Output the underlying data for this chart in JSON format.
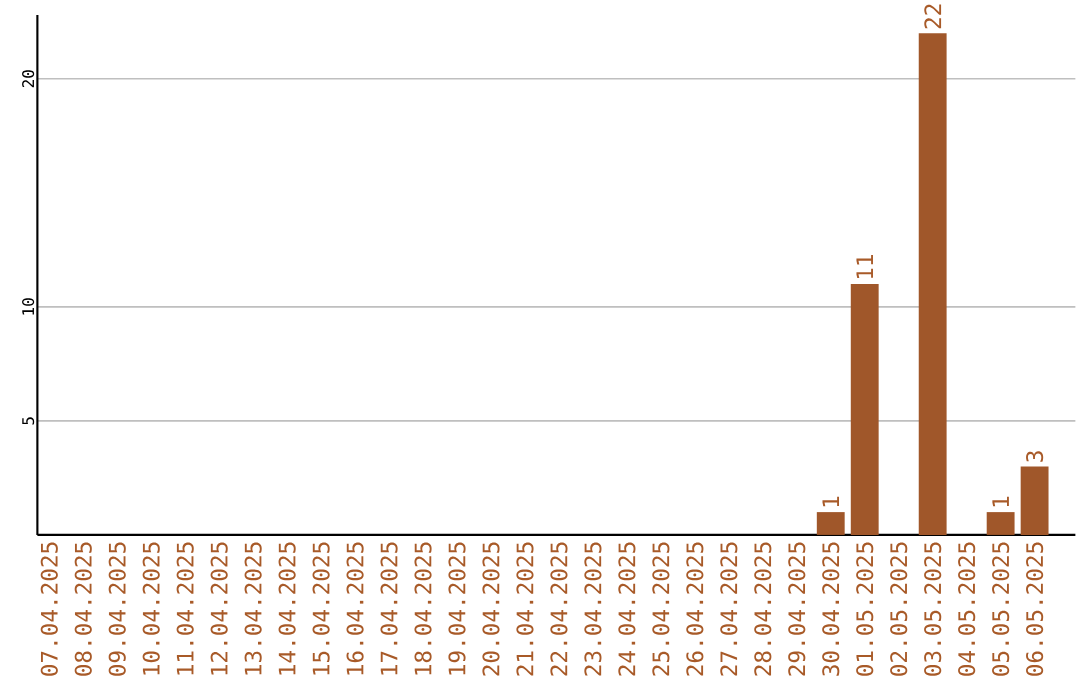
{
  "chart_data": {
    "type": "bar",
    "categories": [
      "07.04.2025",
      "08.04.2025",
      "09.04.2025",
      "10.04.2025",
      "11.04.2025",
      "12.04.2025",
      "13.04.2025",
      "14.04.2025",
      "15.04.2025",
      "16.04.2025",
      "17.04.2025",
      "18.04.2025",
      "19.04.2025",
      "20.04.2025",
      "21.04.2025",
      "22.04.2025",
      "23.04.2025",
      "24.04.2025",
      "25.04.2025",
      "26.04.2025",
      "27.04.2025",
      "28.04.2025",
      "29.04.2025",
      "30.04.2025",
      "01.05.2025",
      "02.05.2025",
      "03.05.2025",
      "04.05.2025",
      "05.05.2025",
      "06.05.2025"
    ],
    "values": [
      0,
      0,
      0,
      0,
      0,
      0,
      0,
      0,
      0,
      0,
      0,
      0,
      0,
      0,
      0,
      0,
      0,
      0,
      0,
      0,
      0,
      0,
      0,
      1,
      11,
      0,
      22,
      0,
      1,
      3
    ],
    "value_labels": [
      null,
      null,
      null,
      null,
      null,
      null,
      null,
      null,
      null,
      null,
      null,
      null,
      null,
      null,
      null,
      null,
      null,
      null,
      null,
      null,
      null,
      null,
      null,
      "1",
      "11",
      null,
      "22",
      null,
      "1",
      "3"
    ],
    "color": "#a0572a",
    "ylim": [
      0,
      22.8
    ],
    "yticks": [
      5,
      10,
      20
    ],
    "grid": "y"
  }
}
